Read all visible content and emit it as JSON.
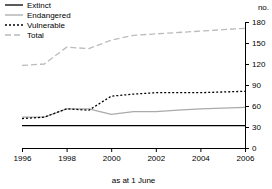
{
  "chart_data": {
    "type": "line",
    "x_label": "as at 1 June",
    "y_label": "no.",
    "x": [
      1996,
      1997,
      1998,
      1999,
      2000,
      2001,
      2002,
      2003,
      2004,
      2005,
      2006
    ],
    "series": [
      {
        "name": "Extinct",
        "color": "#000000",
        "line_style": "solid",
        "values": [
          32,
          32,
          32,
          32,
          32,
          32,
          32,
          32,
          32,
          32,
          32
        ]
      },
      {
        "name": "Endangered",
        "color": "#aaaaaa",
        "line_style": "solid",
        "values": [
          44,
          44,
          56,
          56,
          48,
          52,
          52,
          54,
          56,
          57,
          58
        ]
      },
      {
        "name": "Vulnerable",
        "color": "#000000",
        "line_style": "dotted",
        "values": [
          42,
          44,
          56,
          54,
          74,
          77,
          79,
          79,
          79,
          80,
          81
        ]
      },
      {
        "name": "Total",
        "color": "#bbbbbb",
        "line_style": "dashed",
        "values": [
          118,
          120,
          144,
          142,
          154,
          161,
          163,
          165,
          167,
          169,
          171
        ]
      }
    ],
    "xlim": [
      1996,
      2006
    ],
    "xticks": [
      1996,
      1998,
      2000,
      2002,
      2004,
      2006
    ],
    "ylim": [
      0,
      180
    ],
    "yticks": [
      0,
      30,
      60,
      90,
      120,
      150,
      180
    ],
    "grid": false,
    "legend": "upper left"
  }
}
